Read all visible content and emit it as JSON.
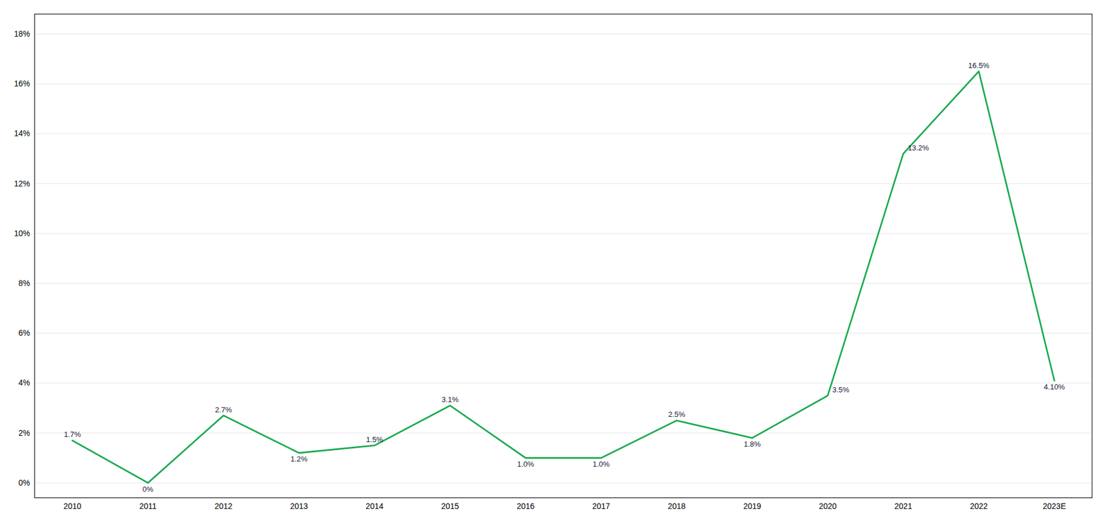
{
  "chart_data": {
    "type": "line",
    "categories": [
      "2010",
      "2011",
      "2012",
      "2013",
      "2014",
      "2015",
      "2016",
      "2017",
      "2018",
      "2019",
      "2020",
      "2021",
      "2022",
      "2023E"
    ],
    "values": [
      1.7,
      0.0,
      2.7,
      1.2,
      1.5,
      3.1,
      1.0,
      1.0,
      2.5,
      1.8,
      3.5,
      13.2,
      16.5,
      4.1
    ],
    "value_labels": [
      "1.7%",
      "0%",
      "2.7%",
      "1.2%",
      "1.5%",
      "3.1%",
      "1.0%",
      "1.0%",
      "2.5%",
      "1.8%",
      "3.5%",
      "13.2%",
      "16.5%",
      "4.10%"
    ],
    "color": "#1aaa50",
    "ylim": [
      -0.6,
      18.8
    ],
    "yticks": [
      {
        "value": 0,
        "label": "0%"
      },
      {
        "value": 2,
        "label": "2%"
      },
      {
        "value": 4,
        "label": "4%"
      },
      {
        "value": 6,
        "label": "6%"
      },
      {
        "value": 8,
        "label": "8%"
      },
      {
        "value": 10,
        "label": "10%"
      },
      {
        "value": 12,
        "label": "12%"
      },
      {
        "value": 14,
        "label": "14%"
      },
      {
        "value": 16,
        "label": "16%"
      },
      {
        "value": 18,
        "label": "18%"
      }
    ],
    "grid": true,
    "data_labels": true
  }
}
